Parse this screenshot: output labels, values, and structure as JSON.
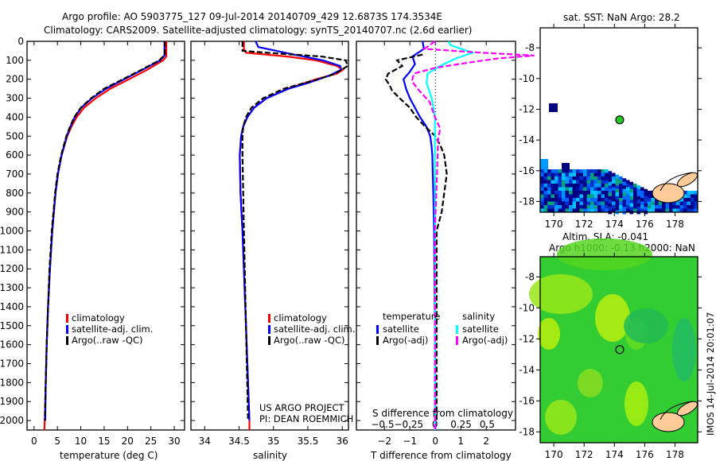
{
  "title_line1": "Argo profile: AO 5903775_127 09-Jul-2014 20140709_429 12.6873S 174.3534E",
  "title_line2": "Climatology: CARS2009. Satellite-adjusted climatology: synTS_20140707.nc (2.6d earlier)",
  "credit_line1": "US ARGO PROJECT",
  "credit_line2": "PI: DEAN ROEMMICH",
  "timestamp": "IMOS 14-Jul-2014 20:01:07",
  "colors": {
    "climatology": "#ff0000",
    "satellite": "#0000ff",
    "argo": "#000000",
    "sal_satellite": "#00ffff",
    "sal_argo": "#ff00ff",
    "land": "#ffcc99"
  },
  "chart_data": [
    {
      "type": "line",
      "title": "",
      "xlabel": "temperature (deg C)",
      "ylabel": "",
      "xlim": [
        -1.5,
        32.2
      ],
      "ylim": [
        2050,
        0
      ],
      "xticks": [
        0,
        5,
        10,
        15,
        20,
        25,
        30
      ],
      "yticks": [
        0,
        100,
        200,
        300,
        400,
        500,
        600,
        700,
        800,
        900,
        1000,
        1100,
        1200,
        1300,
        1400,
        1500,
        1600,
        1700,
        1800,
        1900,
        2000
      ],
      "legend": [
        "climatology",
        "satellite-adj. clim.",
        "Argo(..raw -QC)"
      ],
      "legend_position": "lower-center",
      "series": [
        {
          "name": "climatology",
          "style": "solid",
          "color_key": "climatology",
          "depth": [
            0,
            80,
            100,
            150,
            200,
            250,
            300,
            350,
            400,
            450,
            500,
            600,
            700,
            800,
            1000,
            1200,
            1400,
            1600,
            1800,
            2000,
            2050
          ],
          "values": [
            28.3,
            28.3,
            27.6,
            24.2,
            20.3,
            16.3,
            13.2,
            10.7,
            9.1,
            8.0,
            7.1,
            5.9,
            5.1,
            4.6,
            3.9,
            3.4,
            3.0,
            2.7,
            2.5,
            2.3,
            2.2
          ]
        },
        {
          "name": "satellite-adj. clim.",
          "style": "solid",
          "color_key": "satellite",
          "depth": [
            0,
            75,
            100,
            150,
            200,
            250,
            300,
            350,
            400,
            450,
            500,
            600,
            700,
            800,
            1000,
            1200,
            1400,
            1600,
            1800,
            2000
          ],
          "values": [
            27.9,
            27.9,
            27.0,
            23.2,
            19.3,
            15.4,
            12.4,
            10.1,
            8.7,
            7.8,
            7.0,
            5.9,
            5.1,
            4.6,
            3.9,
            3.4,
            3.0,
            2.7,
            2.5,
            2.4
          ]
        },
        {
          "name": "Argo(..raw -QC)",
          "style": "dashed",
          "color_key": "argo",
          "depth": [
            0,
            70,
            100,
            150,
            200,
            250,
            300,
            350,
            400,
            450,
            500,
            600,
            700,
            800,
            1000,
            1200,
            1400,
            1600,
            1800,
            2000
          ],
          "values": [
            28.0,
            28.0,
            26.8,
            23.0,
            19.0,
            15.0,
            12.2,
            10.0,
            8.6,
            7.7,
            6.9,
            5.8,
            5.0,
            4.5,
            3.8,
            3.3,
            3.0,
            2.7,
            2.5,
            2.3
          ]
        }
      ]
    },
    {
      "type": "line",
      "xlabel": "salinity",
      "xlim": [
        33.8,
        36.09
      ],
      "ylim": [
        2050,
        0
      ],
      "xticks": [
        34,
        34.5,
        35,
        35.5,
        36
      ],
      "legend": [
        "climatology",
        "satellite-adj. clim.",
        "Argo(..raw -QC)"
      ],
      "legend_position": "lower-center",
      "series": [
        {
          "name": "climatology",
          "style": "solid",
          "color_key": "climatology",
          "depth": [
            0,
            40,
            60,
            80,
            100,
            130,
            150,
            170,
            200,
            250,
            300,
            350,
            400,
            450,
            500,
            600,
            800,
            1000,
            1500,
            2000,
            2050
          ],
          "values": [
            34.57,
            34.57,
            34.6,
            35.2,
            35.62,
            35.92,
            36.01,
            35.92,
            35.62,
            35.2,
            34.9,
            34.72,
            34.62,
            34.56,
            34.53,
            34.51,
            34.52,
            34.55,
            34.6,
            34.65,
            34.65
          ]
        },
        {
          "name": "satellite-adj. clim.",
          "style": "solid",
          "color_key": "satellite",
          "depth": [
            0,
            30,
            70,
            100,
            130,
            150,
            180,
            220,
            250,
            300,
            350,
            400,
            450,
            500,
            600,
            800,
            1000,
            1500,
            2000
          ],
          "values": [
            34.74,
            34.78,
            35.3,
            35.72,
            35.97,
            35.98,
            35.82,
            35.5,
            35.22,
            34.9,
            34.72,
            34.62,
            34.56,
            34.53,
            34.51,
            34.52,
            34.55,
            34.6,
            34.65
          ]
        },
        {
          "name": "Argo(..raw -QC)",
          "style": "dashed",
          "color_key": "argo",
          "depth": [
            0,
            50,
            60,
            80,
            100,
            130,
            170,
            200,
            250,
            300,
            350,
            400,
            450,
            500,
            600,
            800,
            1000,
            1500,
            2000
          ],
          "values": [
            34.55,
            34.55,
            34.9,
            35.7,
            36.05,
            36.08,
            35.9,
            35.65,
            35.15,
            34.85,
            34.68,
            34.6,
            34.56,
            34.55,
            34.55,
            34.56,
            34.57,
            34.6,
            34.63
          ]
        }
      ]
    },
    {
      "type": "line",
      "xlabel": "T difference from climatology",
      "x2label": "S difference from climatology",
      "xlim": [
        -3.1,
        3.15
      ],
      "x2lim": [
        -0.75,
        0.77
      ],
      "ylim": [
        2050,
        0
      ],
      "xticks": [
        -2,
        -1,
        0,
        1,
        2
      ],
      "x2ticks": [
        -0.5,
        -0.25,
        0,
        0.25,
        0.5
      ],
      "legend_headers": [
        "temperature",
        "salinity"
      ],
      "legend": [
        "satellite",
        "Argo(-adj)",
        "satellite",
        "Argo(-adj)"
      ],
      "series": [
        {
          "name": "temperature satellite",
          "axis": "T",
          "style": "solid",
          "color_key": "satellite",
          "depth": [
            0,
            40,
            80,
            120,
            160,
            200,
            250,
            300,
            350,
            400,
            450,
            500,
            550,
            600,
            700,
            800,
            1000,
            1500,
            2050
          ],
          "values": [
            -0.5,
            -0.45,
            -0.9,
            -0.8,
            -1.0,
            -1.25,
            -1.15,
            -1.0,
            -0.8,
            -0.6,
            -0.35,
            -0.2,
            -0.15,
            -0.12,
            -0.1,
            -0.08,
            -0.05,
            -0.02,
            0
          ]
        },
        {
          "name": "temperature Argo(-adj)",
          "axis": "T",
          "style": "dashed",
          "color_key": "argo",
          "depth": [
            70,
            100,
            130,
            170,
            200,
            230,
            260,
            300,
            350,
            400,
            450,
            500,
            550,
            600,
            700,
            800,
            900,
            1000,
            1200,
            1500,
            2000
          ],
          "values": [
            -0.5,
            -1.5,
            -1.3,
            -1.85,
            -1.95,
            -1.8,
            -1.7,
            -1.4,
            -1.0,
            -0.75,
            -0.4,
            0.0,
            0.2,
            0.35,
            0.45,
            0.35,
            0.25,
            0.05,
            0.05,
            0.05,
            0.05
          ]
        },
        {
          "name": "salinity satellite",
          "axis": "S",
          "style": "solid",
          "color_key": "sal_satellite",
          "depth": [
            0,
            20,
            60,
            90,
            130,
            170,
            220,
            300,
            400,
            500,
            1000,
            2050
          ],
          "values": [
            0.13,
            0.15,
            0.36,
            0.2,
            0.05,
            -0.07,
            -0.08,
            -0.03,
            0.0,
            0.0,
            0.0,
            0.0
          ]
        },
        {
          "name": "salinity Argo(-adj)",
          "axis": "S",
          "style": "dashed",
          "color_key": "sal_argo",
          "depth": [
            0,
            40,
            60,
            75,
            90,
            110,
            140,
            170,
            210,
            260,
            320,
            400,
            460,
            520,
            700,
            1000,
            2050
          ],
          "values": [
            0.0,
            -0.1,
            0.45,
            0.95,
            0.6,
            0.35,
            0.0,
            -0.2,
            -0.22,
            -0.15,
            -0.05,
            0.0,
            0.05,
            0.03,
            0.02,
            0.0,
            0.0
          ]
        }
      ]
    }
  ],
  "maps": [
    {
      "title": "sat. SST: NaN Argo: 28.2",
      "lon_ticks": [
        170,
        172,
        174,
        176,
        178
      ],
      "lat_ticks": [
        -8,
        -10,
        -12,
        -14,
        -16,
        -18
      ],
      "lat_labels": [
        "-8",
        "-10",
        "-12",
        "-14",
        "-16",
        "-18"
      ],
      "lonlim": [
        169.1,
        179.5
      ],
      "latlim": [
        -18.7,
        -6.7
      ],
      "argo_lon": 174.35,
      "argo_lat": -12.69
    },
    {
      "title_line1": "Altim. SLA: -0.041",
      "title_line2": "Argo h1000: -0.13 h2000: NaN",
      "lon_ticks": [
        170,
        172,
        174,
        176,
        178
      ],
      "lat_ticks": [
        -8,
        -10,
        -12,
        -14,
        -16,
        -18
      ],
      "lat_labels": [
        "-8",
        "-10",
        "-12",
        "-14",
        "-16",
        "-18"
      ],
      "lonlim": [
        169.1,
        179.5
      ],
      "latlim": [
        -18.7,
        -6.7
      ],
      "argo_lon": 174.35,
      "argo_lat": -12.69
    }
  ]
}
